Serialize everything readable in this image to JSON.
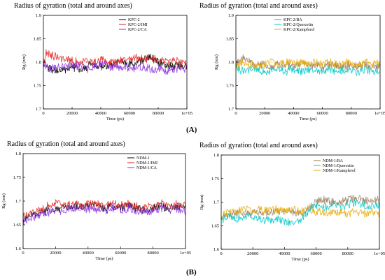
{
  "section_labels": {
    "a": "(A)",
    "b": "(B)"
  },
  "chart_data": [
    {
      "id": "kpc2",
      "type": "line",
      "title": "Radius of gyration (total and around axes)",
      "ylabel": "Rg (nm)",
      "xlabel": "Time (ps)",
      "xlim": [
        0,
        100000
      ],
      "ylim": [
        1.7,
        1.9
      ],
      "xticks": [
        0,
        20000,
        40000,
        60000,
        80000,
        100000
      ],
      "xtick_labels": [
        "0",
        "20000",
        "40000",
        "60000",
        "80000",
        "1e+05"
      ],
      "yticks": [
        1.7,
        1.75,
        1.8,
        1.85,
        1.9
      ],
      "ytick_labels": [
        "1.7",
        "1.75",
        "1.8",
        "1.85",
        "1.9"
      ],
      "grid": false,
      "legend_position": "top-right",
      "series": [
        {
          "name": "KPC-2",
          "color": "#000000",
          "x": [
            0,
            2000,
            5000,
            10000,
            15000,
            20000,
            25000,
            30000,
            35000,
            40000,
            45000,
            50000,
            55000,
            60000,
            65000,
            70000,
            75000,
            80000,
            85000,
            90000,
            95000,
            100000
          ],
          "y": [
            1.8,
            1.79,
            1.785,
            1.78,
            1.785,
            1.79,
            1.785,
            1.79,
            1.795,
            1.79,
            1.79,
            1.795,
            1.8,
            1.795,
            1.8,
            1.805,
            1.81,
            1.8,
            1.795,
            1.79,
            1.795,
            1.79
          ]
        },
        {
          "name": "KPC-2/IMI",
          "color": "#e0201a",
          "x": [
            0,
            2000,
            5000,
            10000,
            15000,
            20000,
            25000,
            30000,
            35000,
            40000,
            45000,
            50000,
            55000,
            60000,
            65000,
            70000,
            75000,
            80000,
            85000,
            90000,
            95000,
            100000
          ],
          "y": [
            1.8,
            1.82,
            1.815,
            1.81,
            1.805,
            1.805,
            1.8,
            1.8,
            1.8,
            1.805,
            1.8,
            1.8,
            1.805,
            1.805,
            1.81,
            1.805,
            1.81,
            1.805,
            1.8,
            1.805,
            1.8,
            1.8
          ]
        },
        {
          "name": "KPC-2/CA",
          "color": "#8e2be2",
          "x": [
            0,
            2000,
            5000,
            10000,
            15000,
            20000,
            25000,
            30000,
            35000,
            40000,
            45000,
            50000,
            55000,
            60000,
            65000,
            70000,
            75000,
            80000,
            85000,
            90000,
            95000,
            100000
          ],
          "y": [
            1.8,
            1.79,
            1.785,
            1.79,
            1.79,
            1.795,
            1.79,
            1.785,
            1.79,
            1.795,
            1.79,
            1.79,
            1.785,
            1.79,
            1.785,
            1.79,
            1.785,
            1.785,
            1.78,
            1.785,
            1.785,
            1.785
          ]
        }
      ]
    },
    {
      "id": "kpc2-ligands",
      "type": "line",
      "title": "Radius of gyration (total and around axes)",
      "ylabel": "Rg (nm)",
      "xlabel": "Time (ps)",
      "xlim": [
        0,
        100000
      ],
      "ylim": [
        1.7,
        1.9
      ],
      "xticks": [
        0,
        20000,
        40000,
        60000,
        80000,
        100000
      ],
      "xtick_labels": [
        "0",
        "20000",
        "40000",
        "60000",
        "80000",
        "1e+05"
      ],
      "yticks": [
        1.7,
        1.75,
        1.8,
        1.85,
        1.9
      ],
      "ytick_labels": [
        "1.7",
        "1.75",
        "1.8",
        "1.85",
        "1.9"
      ],
      "grid": false,
      "legend_position": "top-right",
      "series": [
        {
          "name": "KPC-2/BA",
          "color": "#9a7a5a",
          "x": [
            0,
            2000,
            5000,
            10000,
            15000,
            20000,
            25000,
            30000,
            35000,
            40000,
            45000,
            50000,
            55000,
            60000,
            65000,
            70000,
            75000,
            80000,
            85000,
            90000,
            95000,
            100000
          ],
          "y": [
            1.795,
            1.8,
            1.81,
            1.8,
            1.795,
            1.795,
            1.79,
            1.795,
            1.795,
            1.79,
            1.795,
            1.79,
            1.795,
            1.79,
            1.795,
            1.79,
            1.79,
            1.795,
            1.79,
            1.795,
            1.79,
            1.795
          ]
        },
        {
          "name": "KPC-2/Quercetin",
          "color": "#00c8c8",
          "x": [
            0,
            2000,
            5000,
            10000,
            15000,
            20000,
            25000,
            30000,
            35000,
            40000,
            45000,
            50000,
            55000,
            60000,
            65000,
            70000,
            75000,
            80000,
            85000,
            90000,
            95000,
            100000
          ],
          "y": [
            1.79,
            1.785,
            1.78,
            1.785,
            1.785,
            1.78,
            1.78,
            1.785,
            1.78,
            1.785,
            1.78,
            1.785,
            1.78,
            1.78,
            1.785,
            1.78,
            1.785,
            1.78,
            1.78,
            1.785,
            1.78,
            1.785
          ]
        },
        {
          "name": "KPC-2/Kampferol",
          "color": "#e6a800",
          "x": [
            0,
            2000,
            5000,
            10000,
            15000,
            20000,
            25000,
            30000,
            35000,
            40000,
            45000,
            50000,
            55000,
            60000,
            65000,
            70000,
            75000,
            80000,
            85000,
            90000,
            95000,
            100000
          ],
          "y": [
            1.795,
            1.795,
            1.8,
            1.795,
            1.79,
            1.795,
            1.8,
            1.795,
            1.8,
            1.795,
            1.8,
            1.795,
            1.8,
            1.795,
            1.8,
            1.795,
            1.8,
            1.795,
            1.795,
            1.8,
            1.795,
            1.8
          ]
        }
      ]
    },
    {
      "id": "ndm1",
      "type": "line",
      "title": "Radius of gyration (total and around axes)",
      "ylabel": "Rg (nm)",
      "xlabel": "Time (ps)",
      "xlim": [
        0,
        100000
      ],
      "ylim": [
        1.6,
        1.8
      ],
      "xticks": [
        0,
        20000,
        40000,
        60000,
        80000,
        100000
      ],
      "xtick_labels": [
        "0",
        "20000",
        "40000",
        "60000",
        "80000",
        "1e+05"
      ],
      "yticks": [
        1.6,
        1.65,
        1.7,
        1.75,
        1.8
      ],
      "ytick_labels": [
        "1.6",
        "1.65",
        "1.7",
        "1.75",
        "1.8"
      ],
      "grid": false,
      "legend_position": "top-right",
      "series": [
        {
          "name": "NDM-1",
          "color": "#000000",
          "x": [
            0,
            2000,
            5000,
            10000,
            15000,
            20000,
            25000,
            30000,
            35000,
            40000,
            45000,
            50000,
            55000,
            60000,
            65000,
            70000,
            75000,
            80000,
            85000,
            90000,
            95000,
            100000
          ],
          "y": [
            1.66,
            1.665,
            1.67,
            1.675,
            1.68,
            1.685,
            1.685,
            1.69,
            1.685,
            1.69,
            1.69,
            1.685,
            1.69,
            1.685,
            1.69,
            1.685,
            1.68,
            1.685,
            1.69,
            1.685,
            1.69,
            1.685
          ]
        },
        {
          "name": "NDM-1/IMI",
          "color": "#e0201a",
          "x": [
            0,
            2000,
            5000,
            10000,
            15000,
            20000,
            25000,
            30000,
            35000,
            40000,
            45000,
            50000,
            55000,
            60000,
            65000,
            70000,
            75000,
            80000,
            85000,
            90000,
            95000,
            100000
          ],
          "y": [
            1.665,
            1.67,
            1.675,
            1.68,
            1.69,
            1.695,
            1.69,
            1.695,
            1.69,
            1.695,
            1.695,
            1.69,
            1.695,
            1.69,
            1.695,
            1.69,
            1.685,
            1.69,
            1.695,
            1.69,
            1.695,
            1.69
          ]
        },
        {
          "name": "NDM-1/CA",
          "color": "#8e2be2",
          "x": [
            0,
            2000,
            5000,
            10000,
            15000,
            20000,
            25000,
            30000,
            35000,
            40000,
            45000,
            50000,
            55000,
            60000,
            65000,
            70000,
            75000,
            80000,
            85000,
            90000,
            95000,
            100000
          ],
          "y": [
            1.655,
            1.66,
            1.665,
            1.67,
            1.675,
            1.68,
            1.68,
            1.685,
            1.68,
            1.685,
            1.68,
            1.68,
            1.685,
            1.68,
            1.685,
            1.68,
            1.675,
            1.68,
            1.685,
            1.68,
            1.685,
            1.675
          ]
        }
      ]
    },
    {
      "id": "ndm1-ligands",
      "type": "line",
      "title": "Radius of gyration (total and around axes)",
      "ylabel": "Rg (nm)",
      "xlabel": "Time (ps)",
      "xlim": [
        0,
        100000
      ],
      "ylim": [
        1.6,
        1.8
      ],
      "xticks": [
        0,
        20000,
        40000,
        60000,
        80000,
        100000
      ],
      "xtick_labels": [
        "0",
        "20000",
        "40000",
        "60000",
        "80000",
        "1e+05"
      ],
      "yticks": [
        1.6,
        1.65,
        1.7,
        1.75,
        1.8
      ],
      "ytick_labels": [
        "1.6",
        "1.65",
        "1.7",
        "1.75",
        "1.8"
      ],
      "grid": false,
      "legend_position": "top-right",
      "series": [
        {
          "name": "NDM-1/BA",
          "color": "#9a7a5a",
          "x": [
            0,
            2000,
            5000,
            10000,
            15000,
            20000,
            25000,
            30000,
            35000,
            40000,
            45000,
            50000,
            55000,
            60000,
            65000,
            70000,
            75000,
            80000,
            85000,
            90000,
            95000,
            100000
          ],
          "y": [
            1.665,
            1.67,
            1.675,
            1.675,
            1.68,
            1.675,
            1.68,
            1.675,
            1.68,
            1.675,
            1.68,
            1.675,
            1.685,
            1.7,
            1.705,
            1.7,
            1.7,
            1.705,
            1.71,
            1.705,
            1.7,
            1.705
          ]
        },
        {
          "name": "NDM-1/Quercetin",
          "color": "#00c8c8",
          "x": [
            0,
            2000,
            5000,
            10000,
            15000,
            20000,
            25000,
            30000,
            35000,
            40000,
            45000,
            50000,
            55000,
            60000,
            65000,
            70000,
            75000,
            80000,
            85000,
            90000,
            95000,
            100000
          ],
          "y": [
            1.66,
            1.665,
            1.67,
            1.665,
            1.67,
            1.665,
            1.665,
            1.66,
            1.665,
            1.66,
            1.655,
            1.66,
            1.68,
            1.695,
            1.69,
            1.695,
            1.69,
            1.695,
            1.7,
            1.695,
            1.69,
            1.695
          ]
        },
        {
          "name": "NDM-1/Kampferol",
          "color": "#e6a800",
          "x": [
            0,
            2000,
            5000,
            10000,
            15000,
            20000,
            25000,
            30000,
            35000,
            40000,
            45000,
            50000,
            55000,
            60000,
            65000,
            70000,
            75000,
            80000,
            85000,
            90000,
            95000,
            100000
          ],
          "y": [
            1.67,
            1.675,
            1.68,
            1.68,
            1.685,
            1.68,
            1.685,
            1.68,
            1.685,
            1.68,
            1.685,
            1.68,
            1.685,
            1.68,
            1.68,
            1.675,
            1.68,
            1.675,
            1.68,
            1.675,
            1.68,
            1.675
          ]
        }
      ]
    }
  ]
}
